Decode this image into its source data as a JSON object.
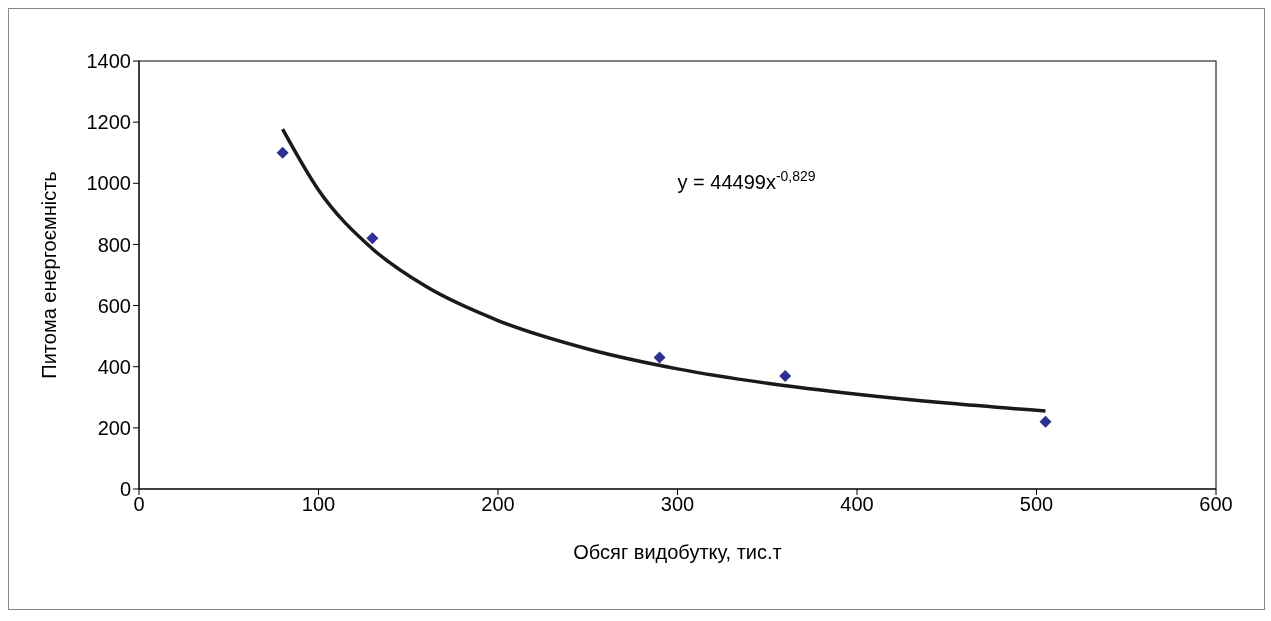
{
  "chart_data": {
    "type": "scatter",
    "xlabel": "Обсяг видобутку, тис.т",
    "ylabel": "Питома енергоємність",
    "xlim": [
      0,
      600
    ],
    "xticks": [
      0,
      100,
      200,
      300,
      400,
      500,
      600
    ],
    "ylim": [
      0,
      1400
    ],
    "yticks": [
      0,
      200,
      400,
      600,
      800,
      1000,
      1200,
      1400
    ],
    "grid": false,
    "legend": false,
    "marker": "diamond",
    "series": [
      {
        "type": "scatter",
        "color": "#2e3192",
        "x": [
          80,
          130,
          290,
          360,
          505
        ],
        "values": [
          1100,
          820,
          430,
          370,
          220
        ]
      },
      {
        "type": "line",
        "color": "#1a1a1a",
        "marker": "none",
        "line_style": "solid",
        "x": [
          80,
          100,
          130,
          160,
          200,
          250,
          300,
          350,
          400,
          450,
          505
        ],
        "values": [
          1177,
          978,
          786,
          662,
          551,
          458,
          393,
          346,
          310,
          281,
          255
        ]
      }
    ],
    "annotations": [
      "y = 44499x$^{-0,829}$"
    ]
  }
}
